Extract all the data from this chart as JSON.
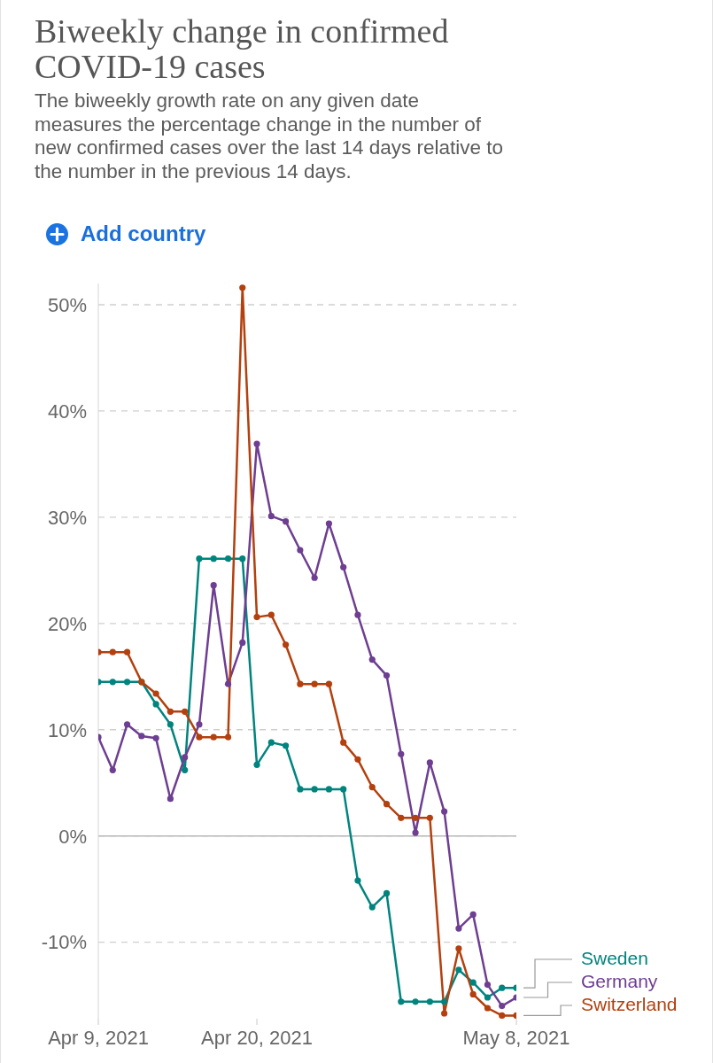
{
  "chart_data": {
    "type": "line",
    "title": "Biweekly change in confirmed COVID-19 cases",
    "subtitle": "The biweekly growth rate on any given date measures the percentage change in the number of new confirmed cases over the last 14 days relative to the number in the previous 14 days.",
    "annotations": [
      "Add country"
    ],
    "x": [
      "2021-04-09",
      "2021-04-10",
      "2021-04-11",
      "2021-04-12",
      "2021-04-13",
      "2021-04-14",
      "2021-04-15",
      "2021-04-16",
      "2021-04-17",
      "2021-04-18",
      "2021-04-19",
      "2021-04-20",
      "2021-04-21",
      "2021-04-22",
      "2021-04-23",
      "2021-04-24",
      "2021-04-25",
      "2021-04-26",
      "2021-04-27",
      "2021-04-28",
      "2021-04-29",
      "2021-04-30",
      "2021-05-01",
      "2021-05-02",
      "2021-05-03",
      "2021-05-04",
      "2021-05-05",
      "2021-05-06",
      "2021-05-07",
      "2021-05-08"
    ],
    "series": [
      {
        "name": "Sweden",
        "color": "#00847e",
        "values": [
          14.5,
          14.5,
          14.5,
          14.5,
          12.4,
          10.5,
          6.2,
          26.1,
          26.1,
          26.1,
          26.1,
          6.7,
          8.8,
          8.5,
          4.4,
          4.4,
          4.4,
          4.4,
          -4.2,
          -6.7,
          -5.4,
          -15.6,
          -15.6,
          -15.6,
          -15.6,
          -12.6,
          -13.8,
          -15.2,
          -14.3,
          -14.3
        ]
      },
      {
        "name": "Germany",
        "color": "#6d3e91",
        "values": [
          9.3,
          6.2,
          10.5,
          9.4,
          9.2,
          3.5,
          7.4,
          10.5,
          23.6,
          14.3,
          18.2,
          36.9,
          30.1,
          29.6,
          26.9,
          24.3,
          29.4,
          25.3,
          20.8,
          16.6,
          15.1,
          7.7,
          0.3,
          6.9,
          2.3,
          -8.7,
          -7.4,
          -14.0,
          -16.0,
          -15.2
        ]
      },
      {
        "name": "Switzerland",
        "color": "#b3400e",
        "values": [
          17.3,
          17.3,
          17.3,
          14.5,
          13.4,
          11.7,
          11.7,
          9.3,
          9.3,
          9.3,
          51.6,
          20.6,
          20.8,
          18.0,
          14.3,
          14.3,
          14.3,
          8.8,
          7.2,
          4.6,
          3.0,
          1.7,
          1.7,
          1.7,
          -16.7,
          -10.6,
          -14.9,
          -16.2,
          -16.9,
          -16.9
        ]
      }
    ],
    "xlim": [
      "2021-04-09",
      "2021-05-08"
    ],
    "xticks": [
      {
        "value": "2021-04-09",
        "label": "Apr 9, 2021"
      },
      {
        "value": "2021-04-20",
        "label": "Apr 20, 2021"
      },
      {
        "value": "2021-05-08",
        "label": "May 8, 2021"
      }
    ],
    "ylim": [
      -17.2,
      52
    ],
    "yticks": [
      {
        "value": -10,
        "label": "-10%"
      },
      {
        "value": 0,
        "label": "0%"
      },
      {
        "value": 10,
        "label": "10%"
      },
      {
        "value": 20,
        "label": "20%"
      },
      {
        "value": 30,
        "label": "30%"
      },
      {
        "value": 40,
        "label": "40%"
      },
      {
        "value": 50,
        "label": "50%"
      }
    ],
    "grid": "y",
    "legend": "right",
    "marker": "circle",
    "line_style": "solid",
    "ref_lines": [
      {
        "axis": "y",
        "value": 0,
        "color": "#b8b8b8",
        "line_style": "solid"
      }
    ]
  }
}
